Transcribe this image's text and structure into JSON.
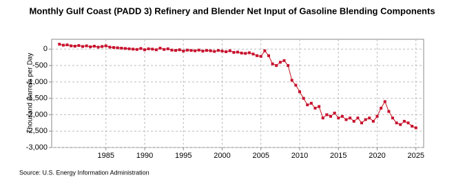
{
  "chart_data": {
    "type": "line",
    "title": "Monthly Gulf Coast (PADD 3) Refinery and Blender Net Input of Gasoline Blending Components",
    "y_label": "Thousand Barrels per Day",
    "source": "Source: U.S. Energy Information Administration",
    "color": "#c0141c",
    "marker_color": "#c8102e",
    "grid": true,
    "xlim": [
      1978,
      2026
    ],
    "xticks": [
      1985,
      1990,
      1995,
      2000,
      2005,
      2010,
      2015,
      2020,
      2025
    ],
    "ylim": [
      -3000,
      300
    ],
    "yticks": [
      {
        "value": 0,
        "label": "0"
      },
      {
        "value": -500,
        "label": "-500"
      },
      {
        "value": -1000,
        "label": "-1,000"
      },
      {
        "value": -1500,
        "label": "-1,500"
      },
      {
        "value": -2000,
        "label": "-2,000"
      },
      {
        "value": -2500,
        "label": "-2,500"
      },
      {
        "value": -3000,
        "label": "-3,000"
      }
    ],
    "x": [
      1979.0,
      1979.5,
      1980.0,
      1980.5,
      1981.0,
      1981.5,
      1982.0,
      1982.5,
      1983.0,
      1983.5,
      1984.0,
      1984.5,
      1985.0,
      1985.5,
      1986.0,
      1986.5,
      1987.0,
      1987.5,
      1988.0,
      1988.5,
      1989.0,
      1989.5,
      1990.0,
      1990.5,
      1991.0,
      1991.5,
      1992.0,
      1992.5,
      1993.0,
      1993.5,
      1994.0,
      1994.5,
      1995.0,
      1995.5,
      1996.0,
      1996.5,
      1997.0,
      1997.5,
      1998.0,
      1998.5,
      1999.0,
      1999.5,
      2000.0,
      2000.5,
      2001.0,
      2001.5,
      2002.0,
      2002.5,
      2003.0,
      2003.5,
      2004.0,
      2004.5,
      2005.0,
      2005.5,
      2006.0,
      2006.5,
      2007.0,
      2007.5,
      2008.0,
      2008.5,
      2009.0,
      2009.5,
      2010.0,
      2010.5,
      2011.0,
      2011.5,
      2012.0,
      2012.5,
      2013.0,
      2013.5,
      2014.0,
      2014.5,
      2015.0,
      2015.5,
      2016.0,
      2016.5,
      2017.0,
      2017.5,
      2018.0,
      2018.5,
      2019.0,
      2019.5,
      2020.0,
      2020.5,
      2021.0,
      2021.5,
      2022.0,
      2022.5,
      2023.0,
      2023.5,
      2024.0,
      2024.5,
      2025.0
    ],
    "values": [
      150,
      120,
      130,
      100,
      90,
      110,
      80,
      100,
      70,
      90,
      60,
      80,
      100,
      60,
      50,
      40,
      30,
      20,
      10,
      0,
      -10,
      20,
      -20,
      10,
      0,
      -20,
      30,
      -10,
      10,
      -30,
      -40,
      -20,
      -60,
      -30,
      -40,
      -50,
      -30,
      -60,
      -40,
      -50,
      -70,
      -40,
      -60,
      -80,
      -50,
      -100,
      -90,
      -120,
      -130,
      -110,
      -150,
      -200,
      -220,
      -50,
      -200,
      -450,
      -500,
      -400,
      -350,
      -500,
      -950,
      -1100,
      -1300,
      -1500,
      -1700,
      -1650,
      -1800,
      -1750,
      -2100,
      -2000,
      -2050,
      -1950,
      -2100,
      -2050,
      -2150,
      -2100,
      -2200,
      -2100,
      -2250,
      -2150,
      -2100,
      -2200,
      -2050,
      -1800,
      -1600,
      -1900,
      -2100,
      -2250,
      -2300,
      -2200,
      -2250,
      -2350,
      -2400
    ]
  }
}
